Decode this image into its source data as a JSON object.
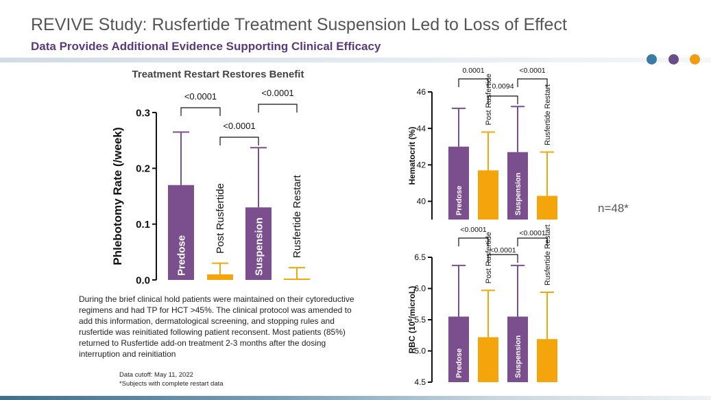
{
  "header": {
    "title": "REVIVE Study: Rusfertide Treatment Suspension Led to Loss of Effect",
    "subtitle": "Data Provides Additional Evidence Supporting Clinical Efficacy",
    "dots": [
      "#3a7ca5",
      "#6b4c8a",
      "#f39c12"
    ]
  },
  "colors": {
    "purple": "#7b4f8e",
    "orange": "#f5a50c"
  },
  "body_text": "During the brief clinical hold patients were maintained on their cytoreductive regimens and had TP for HCT >45%. The clinical protocol was amended to add this information, dermatological screening, and stopping rules and rusfertide was reinitiated following patient reconsent. Most patients (85%) returned to Rusfertide add-on treatment 2-3 months after the dosing interruption and reinitiation",
  "footnotes": {
    "cutoff": "Data cutoff: May 11, 2022",
    "subjects": "*Subjects with complete restart data"
  },
  "n_label": "n=48*",
  "chart_data": [
    {
      "type": "bar",
      "title": "Treatment Restart Restores Benefit",
      "ylabel": "Phlebotomy  Rate  (/week)",
      "ylim": [
        0,
        0.3
      ],
      "yticks": [
        "0.0",
        "0.1",
        "0.2",
        "0.3"
      ],
      "categories": [
        "Predose",
        "Post  Rusfertide",
        "Suspension",
        "Rusfertide  Restart"
      ],
      "values": [
        0.17,
        0.01,
        0.13,
        0.0
      ],
      "errors": [
        0.095,
        0.02,
        0.107,
        0.022
      ],
      "comparisons": [
        {
          "a": 0,
          "b": 1,
          "label": "<0.0001"
        },
        {
          "a": 1,
          "b": 2,
          "label": "<0.0001"
        },
        {
          "a": 2,
          "b": 3,
          "label": "<0.0001"
        }
      ]
    },
    {
      "type": "bar",
      "title": "",
      "ylabel": "Hematocrit (%)",
      "ylim": [
        39,
        46
      ],
      "yticks": [
        "40",
        "42",
        "44",
        "46"
      ],
      "categories": [
        "Predose",
        "Post  Rusfertide",
        "Suspension",
        "Rusfertide  Restart"
      ],
      "values": [
        43.0,
        41.7,
        42.7,
        40.3
      ],
      "errors": [
        2.1,
        2.1,
        2.5,
        2.4
      ],
      "comparisons": [
        {
          "a": 0,
          "b": 1,
          "label": "0.0001"
        },
        {
          "a": 1,
          "b": 2,
          "label": "0.0094"
        },
        {
          "a": 2,
          "b": 3,
          "label": "<0.0001"
        }
      ]
    },
    {
      "type": "bar",
      "title": "",
      "ylabel_main": "RBC  (10",
      "ylabel_sup": "6",
      "ylabel_tail": "/microL)",
      "ylim": [
        4.5,
        6.5
      ],
      "yticks": [
        "4.5",
        "5.0",
        "5.5",
        "6.0",
        "6.5"
      ],
      "categories": [
        "Predose",
        "Post  Rusfertide",
        "Suspension",
        "Rusfertide  Restart"
      ],
      "values": [
        5.55,
        5.22,
        5.55,
        5.19
      ],
      "errors": [
        0.82,
        0.75,
        0.82,
        0.75
      ],
      "comparisons": [
        {
          "a": 0,
          "b": 1,
          "label": "<0.0001"
        },
        {
          "a": 1,
          "b": 2,
          "label": "<0.0001"
        },
        {
          "a": 2,
          "b": 3,
          "label": "<0.0001"
        }
      ]
    }
  ]
}
